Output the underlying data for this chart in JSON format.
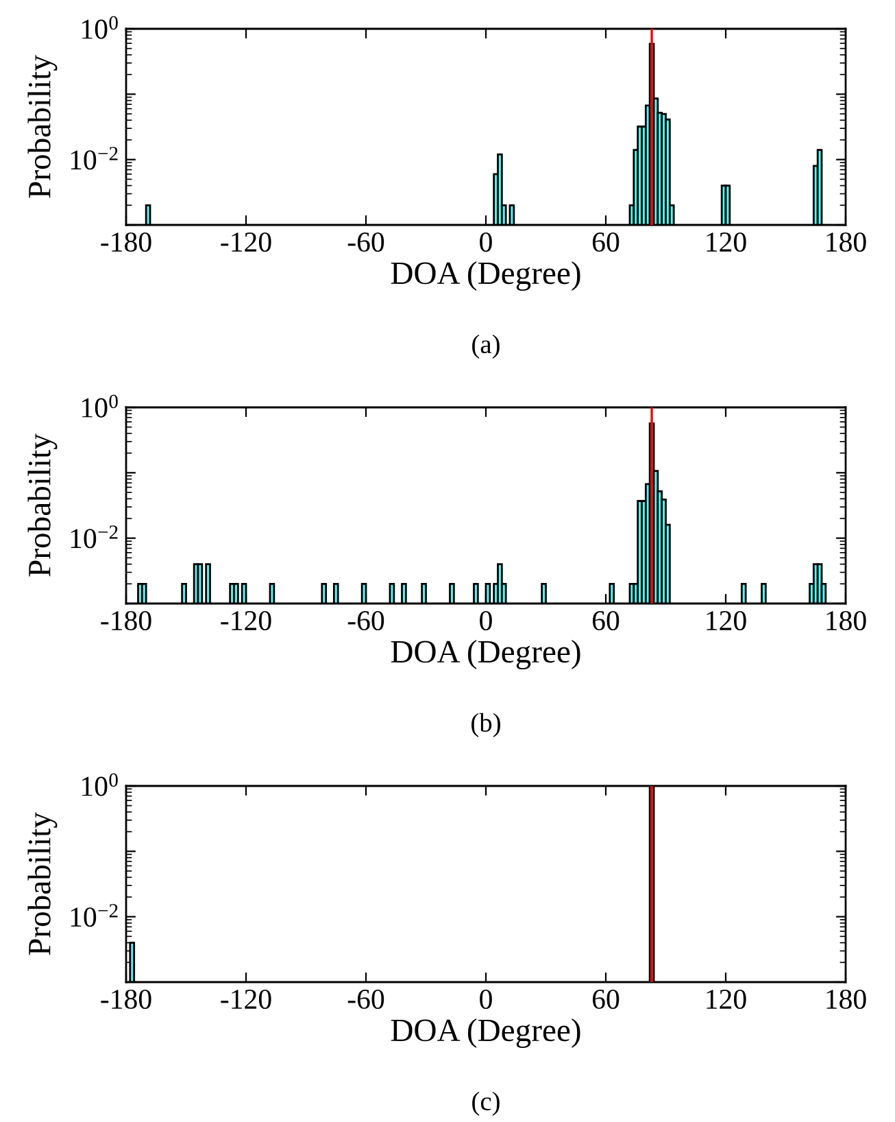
{
  "chart_data": [
    {
      "type": "histogram",
      "xlabel": "DOA (Degree)",
      "ylabel": "Probability",
      "color": "#55f5f5",
      "log": "y",
      "xlim": [
        -180,
        180
      ],
      "xticks": [
        -180,
        -120,
        -60,
        0,
        60,
        120,
        180
      ],
      "ylim": [
        0.001,
        1
      ],
      "yticks": [
        {
          "value": 1,
          "label": "10$^{0}$"
        },
        {
          "value": 0.1,
          "label": null
        },
        {
          "value": 0.01,
          "label": "10$^{−2}$"
        },
        {
          "value": 0.001,
          "label": null
        }
      ],
      "annotations": [
        "(a)"
      ],
      "ref_lines": [
        {
          "axis": "x",
          "value": 83,
          "label": null,
          "color": "#ff0000"
        }
      ],
      "bins": [
        -170,
        -168,
        4,
        6,
        8,
        10,
        12,
        14,
        72,
        74,
        76,
        78,
        80,
        82,
        84,
        86,
        88,
        90,
        92,
        94,
        118,
        120,
        122,
        164,
        166,
        168
      ],
      "values": [
        0.002,
        null,
        0.006,
        0.012,
        0.002,
        null,
        0.002,
        null,
        0.002,
        0.014,
        0.032,
        0.032,
        0.067,
        0.59,
        0.086,
        0.052,
        0.05,
        0.041,
        0.002,
        null,
        0.004,
        0.004,
        null,
        0.008,
        0.014
      ]
    },
    {
      "type": "histogram",
      "xlabel": "DOA (Degree)",
      "ylabel": "Probability",
      "color": "#55f5f5",
      "log": "y",
      "xlim": [
        -180,
        180
      ],
      "xticks": [
        -180,
        -120,
        -60,
        0,
        60,
        120,
        180
      ],
      "ylim": [
        0.001,
        1
      ],
      "yticks": [
        {
          "value": 1,
          "label": "10$^{0}$"
        },
        {
          "value": 0.1,
          "label": null
        },
        {
          "value": 0.01,
          "label": "10$^{−2}$"
        },
        {
          "value": 0.001,
          "label": null
        }
      ],
      "annotations": [
        "(b)"
      ],
      "ref_lines": [
        {
          "axis": "x",
          "value": 83,
          "label": null,
          "color": "#ff0000"
        }
      ],
      "bins": [
        -174,
        -172,
        -170,
        -152,
        -150,
        -146,
        -144,
        -142,
        -140,
        -138,
        -128,
        -126,
        -124,
        -122,
        -120,
        -108,
        -106,
        -82,
        -80,
        -76,
        -74,
        -62,
        -60,
        -48,
        -46,
        -42,
        -40,
        -32,
        -30,
        -18,
        -16,
        -6,
        -4,
        0,
        2,
        4,
        6,
        8,
        10,
        28,
        30,
        62,
        64,
        72,
        74,
        76,
        78,
        80,
        82,
        84,
        86,
        88,
        90,
        92,
        128,
        130,
        138,
        140,
        162,
        164,
        166,
        168,
        170
      ],
      "values": [
        0.002,
        0.002,
        null,
        0.002,
        null,
        0.004,
        0.004,
        null,
        0.004,
        null,
        0.002,
        0.002,
        null,
        0.002,
        null,
        0.002,
        null,
        0.002,
        null,
        0.002,
        null,
        0.002,
        null,
        0.002,
        null,
        0.002,
        null,
        0.002,
        null,
        0.002,
        null,
        0.002,
        null,
        0.002,
        null,
        0.002,
        0.004,
        0.002,
        null,
        0.002,
        null,
        0.002,
        null,
        0.002,
        0.002,
        0.037,
        0.037,
        0.067,
        0.57,
        0.107,
        0.052,
        0.039,
        0.016,
        null,
        0.002,
        null,
        0.002,
        null,
        0.002,
        0.004,
        0.004,
        0.002
      ]
    },
    {
      "type": "histogram",
      "xlabel": "DOA (Degree)",
      "ylabel": "Probability",
      "color": "#55f5f5",
      "log": "y",
      "xlim": [
        -180,
        180
      ],
      "xticks": [
        -180,
        -120,
        -60,
        0,
        60,
        120,
        180
      ],
      "ylim": [
        0.001,
        1
      ],
      "yticks": [
        {
          "value": 1,
          "label": "10$^{0}$"
        },
        {
          "value": 0.1,
          "label": null
        },
        {
          "value": 0.01,
          "label": "10$^{−2}$"
        },
        {
          "value": 0.001,
          "label": null
        }
      ],
      "annotations": [
        "(c)"
      ],
      "ref_lines": [
        {
          "axis": "x",
          "value": 83,
          "label": null,
          "color": "#ff0000"
        }
      ],
      "bins": [
        -178,
        -176,
        82,
        84
      ],
      "values": [
        0.004,
        null,
        0.996
      ]
    }
  ]
}
